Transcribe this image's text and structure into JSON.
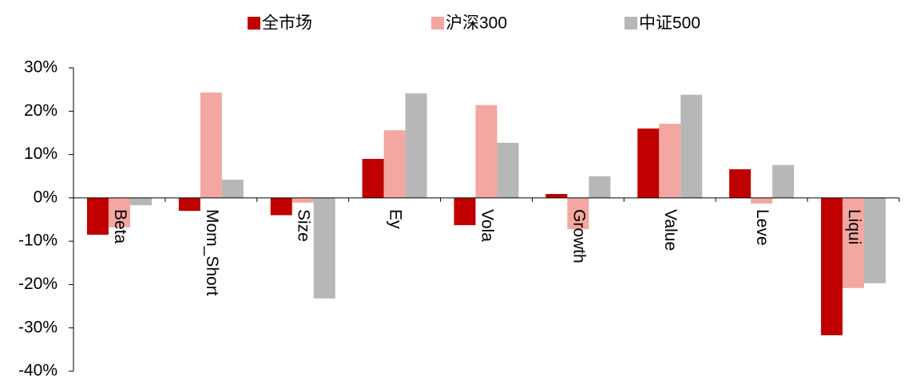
{
  "chart_data": {
    "type": "bar",
    "categories": [
      "Beta",
      "Mom_Short",
      "Size",
      "Ey",
      "Vola",
      "Growth",
      "Value",
      "Leve",
      "Liqui"
    ],
    "series": [
      {
        "name": "全市场",
        "color": "#c00000",
        "values": [
          -8.5,
          -3,
          -4,
          9,
          -6.3,
          0.9,
          16,
          6.6,
          -31.7
        ]
      },
      {
        "name": "沪深300",
        "color": "#f4a6a0",
        "values": [
          -6.8,
          24.3,
          -1.1,
          15.6,
          21.4,
          -7.2,
          17.1,
          -1.3,
          -20.8
        ]
      },
      {
        "name": "中证500",
        "color": "#b7b7b7",
        "values": [
          -1.7,
          4.2,
          -23.2,
          24.1,
          12.7,
          5.0,
          23.8,
          7.6,
          -19.7
        ]
      }
    ],
    "ylim": [
      -40,
      30
    ],
    "yticks": [
      {
        "value": -40,
        "label": "-40%"
      },
      {
        "value": -30,
        "label": "-30%"
      },
      {
        "value": -20,
        "label": "-20%"
      },
      {
        "value": -10,
        "label": "-10%"
      },
      {
        "value": 0,
        "label": "0%"
      },
      {
        "value": 10,
        "label": "10%"
      },
      {
        "value": 20,
        "label": "20%"
      },
      {
        "value": 30,
        "label": "30%"
      }
    ],
    "legend": "top"
  }
}
